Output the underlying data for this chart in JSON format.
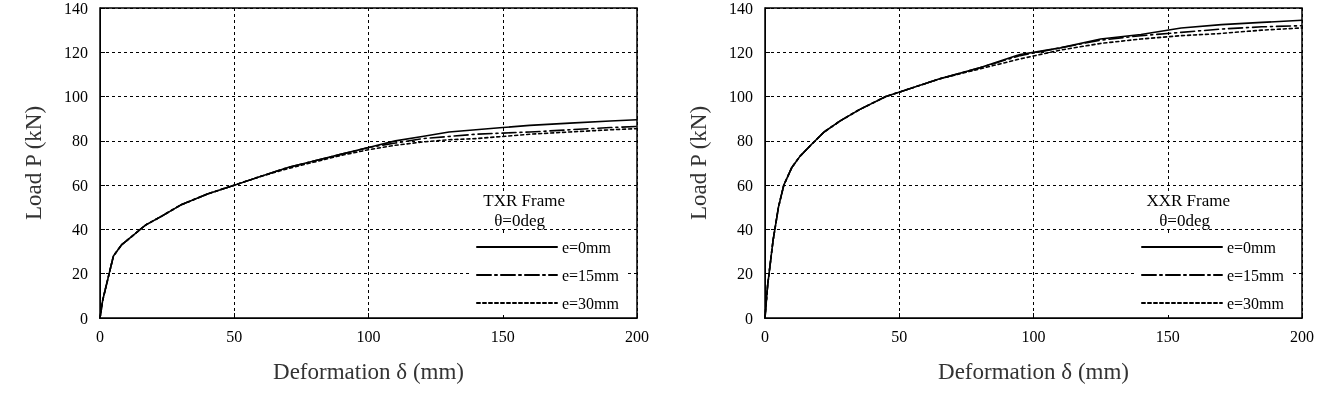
{
  "chart_data": [
    {
      "type": "line",
      "xlabel": "Deformation δ (mm)",
      "ylabel": "Load P (kN)",
      "legend_title": "TXR Frame",
      "annotations": [
        "θ=0deg"
      ],
      "xlim": [
        0,
        200
      ],
      "ylim": [
        0,
        140
      ],
      "xticks": [
        0,
        50,
        100,
        150,
        200
      ],
      "yticks": [
        0,
        20,
        40,
        60,
        80,
        100,
        120,
        140
      ],
      "grid": true,
      "legend": "bottom right",
      "marker": "none",
      "x": [
        0,
        1,
        3,
        5,
        8,
        12,
        17,
        23,
        30,
        40,
        50,
        60,
        70,
        80,
        90,
        100,
        110,
        120,
        130,
        140,
        150,
        160,
        175,
        190,
        200
      ],
      "series": [
        {
          "name": "e=0mm",
          "color": "#000000",
          "line_style": "solid",
          "values": [
            0,
            8,
            18,
            28,
            33,
            37,
            42,
            46,
            51,
            56,
            60,
            64,
            68,
            71,
            74,
            77,
            80,
            82,
            84,
            85,
            86,
            87,
            88,
            89,
            89.5
          ]
        },
        {
          "name": "e=15mm",
          "color": "#000000",
          "line_style": "dashed",
          "values": [
            0,
            8,
            18,
            28,
            33,
            37,
            42,
            46,
            51,
            56,
            60,
            64,
            68,
            71,
            74,
            77,
            79,
            81,
            82,
            83,
            83.5,
            84,
            85,
            86,
            86.5
          ]
        },
        {
          "name": "e=30mm",
          "color": "#000000",
          "line_style": "dotted",
          "values": [
            0,
            8,
            18,
            28,
            33,
            37,
            42,
            46,
            51,
            56,
            60,
            64,
            67.5,
            70.5,
            73.5,
            76,
            78,
            79.5,
            80.5,
            81,
            82,
            83,
            84,
            85,
            85.5
          ]
        }
      ]
    },
    {
      "type": "line",
      "xlabel": "Deformation δ (mm)",
      "ylabel": "Load P (kN)",
      "legend_title": "XXR Frame",
      "annotations": [
        "θ=0deg"
      ],
      "xlim": [
        0,
        200
      ],
      "ylim": [
        0,
        140
      ],
      "xticks": [
        0,
        50,
        100,
        150,
        200
      ],
      "yticks": [
        0,
        20,
        40,
        60,
        80,
        100,
        120,
        140
      ],
      "grid": true,
      "legend": "bottom right",
      "marker": "none",
      "x": [
        0,
        1,
        3,
        5,
        7,
        10,
        13,
        17,
        22,
        28,
        35,
        45,
        55,
        65,
        80,
        95,
        110,
        125,
        140,
        155,
        170,
        185,
        200
      ],
      "series": [
        {
          "name": "e=0mm",
          "color": "#000000",
          "line_style": "solid",
          "values": [
            0,
            15,
            35,
            50,
            60,
            68,
            73,
            78,
            84,
            89,
            94,
            100,
            104,
            108,
            113,
            119,
            122,
            126,
            128,
            131,
            132.5,
            133.5,
            134.5
          ]
        },
        {
          "name": "e=15mm",
          "color": "#000000",
          "line_style": "dashed",
          "values": [
            0,
            15,
            35,
            50,
            60,
            68,
            73,
            78,
            84,
            89,
            94,
            100,
            104,
            108,
            113,
            118.5,
            122,
            125.5,
            127.5,
            129,
            130.5,
            131.5,
            132
          ]
        },
        {
          "name": "e=30mm",
          "color": "#000000",
          "line_style": "dotted",
          "values": [
            0,
            15,
            35,
            50,
            60,
            68,
            73,
            78,
            84,
            89,
            94,
            100,
            104,
            108,
            112.5,
            117,
            121,
            124,
            126,
            127.5,
            128.5,
            130,
            131
          ]
        }
      ]
    }
  ]
}
